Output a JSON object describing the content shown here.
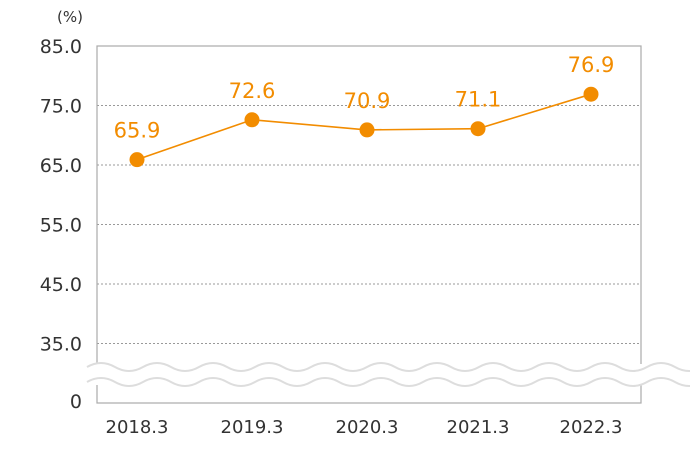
{
  "chart_data": {
    "type": "line",
    "title": "",
    "ylabel": "(%)",
    "xlabel": "",
    "categories": [
      "2018.3",
      "2019.3",
      "2020.3",
      "2021.3",
      "2022.3"
    ],
    "series": [
      {
        "name": "",
        "values": [
          65.9,
          72.6,
          70.9,
          71.1,
          76.9
        ],
        "labels": [
          "65.9",
          "72.6",
          "70.9",
          "71.1",
          "76.9"
        ]
      }
    ],
    "yticks": [
      85,
      75,
      65,
      55,
      45,
      35
    ],
    "ytick_labels": [
      "85.0",
      "75.0",
      "65.0",
      "55.0",
      "45.0",
      "35.0"
    ],
    "ybreak_label": "0",
    "ylim": [
      35,
      85
    ],
    "axis_break": true,
    "grid": true,
    "colors": {
      "series": "#F28C00",
      "axis": "#aaaaaa",
      "grid": "#999999",
      "text": "#333333"
    }
  }
}
